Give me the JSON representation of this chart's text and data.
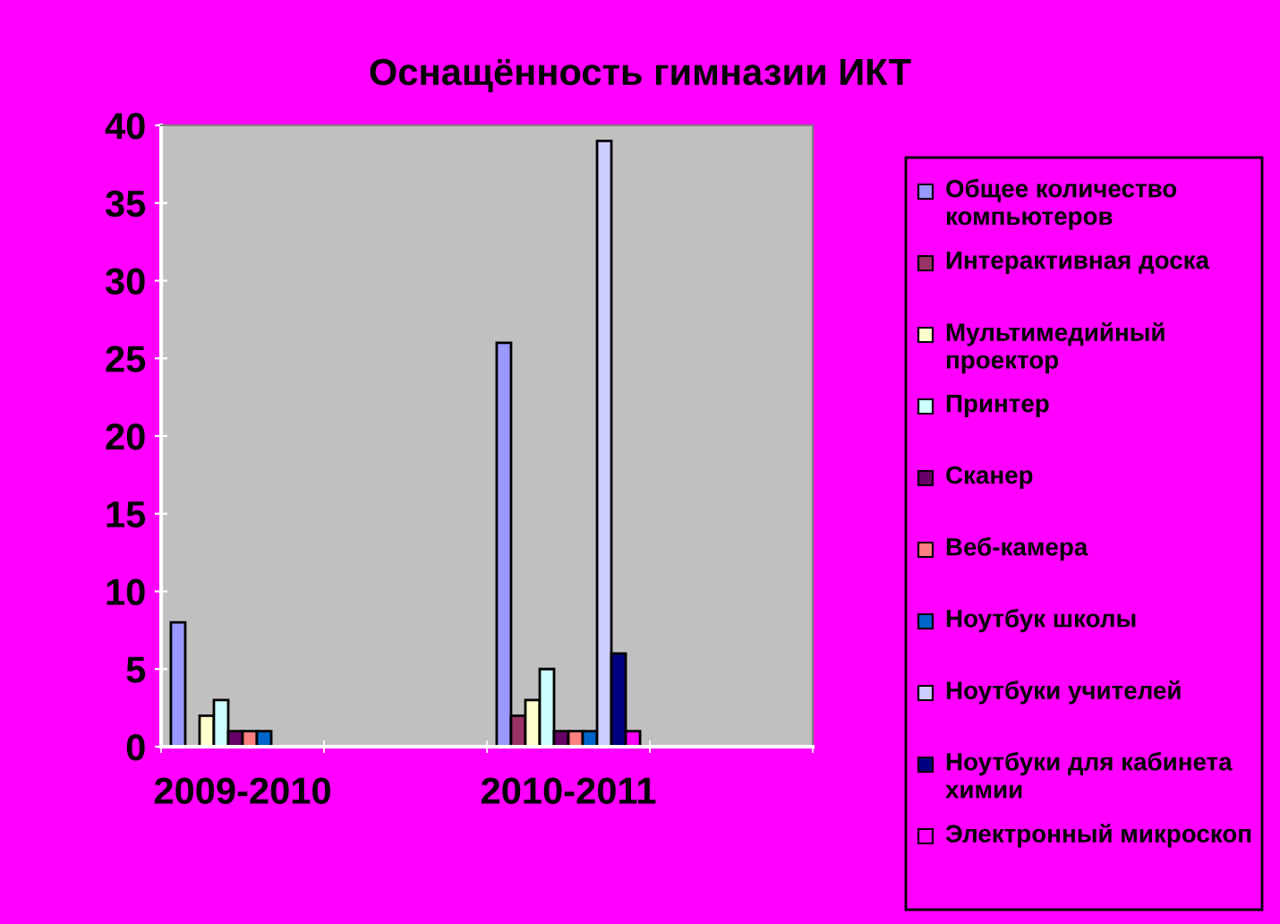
{
  "chart_data": {
    "type": "bar",
    "title": "Оснащённость гимназии ИКТ",
    "categories": [
      "2009-2010",
      null,
      "2010-2011",
      null
    ],
    "series": [
      {
        "name": "Общее количество компьютеров",
        "color": "#9999ff",
        "values": [
          8,
          null,
          26,
          null
        ]
      },
      {
        "name": "Интерактивная доска",
        "color": "#993366",
        "values": [
          0,
          null,
          2,
          null
        ]
      },
      {
        "name": "Мультимедийный проектор",
        "color": "#ffffcc",
        "values": [
          2,
          null,
          3,
          null
        ]
      },
      {
        "name": "Принтер",
        "color": "#ccffff",
        "values": [
          3,
          null,
          5,
          null
        ]
      },
      {
        "name": "Сканер",
        "color": "#660066",
        "values": [
          1,
          null,
          1,
          null
        ]
      },
      {
        "name": "Веб-камера",
        "color": "#ff8080",
        "values": [
          1,
          null,
          1,
          null
        ]
      },
      {
        "name": "Ноутбук школы",
        "color": "#0066cc",
        "values": [
          1,
          null,
          1,
          null
        ]
      },
      {
        "name": "Ноутбуки учителей",
        "color": "#ccccff",
        "values": [
          0,
          null,
          39,
          null
        ]
      },
      {
        "name": "Ноутбуки для кабинета химии",
        "color": "#000080",
        "values": [
          0,
          null,
          6,
          null
        ]
      },
      {
        "name": "Электронный микроскоп",
        "color": "#ff00ff",
        "values": [
          0,
          null,
          1,
          null
        ]
      }
    ],
    "ylim": [
      0,
      40
    ],
    "yticks": [
      0,
      5,
      10,
      15,
      20,
      25,
      30,
      35,
      40
    ],
    "grid": false,
    "legend": "right"
  }
}
